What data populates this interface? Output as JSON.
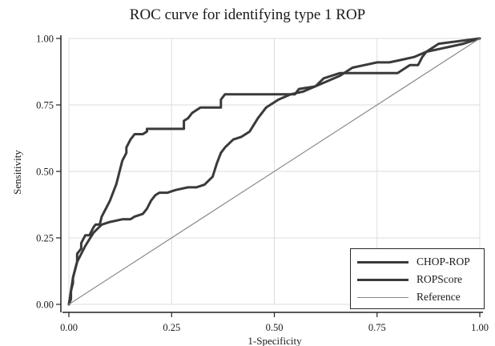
{
  "chart_data": {
    "type": "line",
    "title": "ROC curve for identifying  type 1  ROP",
    "xlabel": "1-Specificity",
    "ylabel": "Sensitivity",
    "xlim": [
      0,
      1
    ],
    "ylim": [
      0,
      1
    ],
    "xticks": [
      "0.00",
      "0.25",
      "0.50",
      "0.75",
      "1.00"
    ],
    "yticks": [
      "0.00",
      "0.25",
      "0.50",
      "0.75",
      "1.00"
    ],
    "grid": true,
    "legend_position": "bottom-right",
    "series": [
      {
        "name": "CHOP-ROP",
        "color": "#3a3a3a",
        "x": [
          0,
          0.005,
          0.005,
          0.01,
          0.01,
          0.015,
          0.02,
          0.02,
          0.03,
          0.03,
          0.04,
          0.045,
          0.05,
          0.06,
          0.065,
          0.075,
          0.08,
          0.09,
          0.1,
          0.11,
          0.115,
          0.12,
          0.125,
          0.13,
          0.14,
          0.14,
          0.15,
          0.16,
          0.16,
          0.17,
          0.18,
          0.19,
          0.19,
          0.22,
          0.23,
          0.28,
          0.28,
          0.29,
          0.3,
          0.31,
          0.32,
          0.37,
          0.37,
          0.38,
          0.4,
          0.45,
          0.52,
          0.55,
          0.56,
          0.6,
          0.62,
          0.66,
          0.7,
          0.72,
          0.8,
          0.83,
          0.85,
          0.86,
          0.87,
          0.9,
          1.0
        ],
        "y": [
          0,
          0.02,
          0.05,
          0.08,
          0.1,
          0.13,
          0.16,
          0.19,
          0.21,
          0.23,
          0.26,
          0.26,
          0.26,
          0.29,
          0.3,
          0.3,
          0.33,
          0.36,
          0.39,
          0.43,
          0.45,
          0.48,
          0.51,
          0.54,
          0.57,
          0.59,
          0.62,
          0.64,
          0.64,
          0.64,
          0.64,
          0.65,
          0.66,
          0.66,
          0.66,
          0.66,
          0.69,
          0.7,
          0.72,
          0.73,
          0.74,
          0.74,
          0.77,
          0.79,
          0.79,
          0.79,
          0.79,
          0.79,
          0.81,
          0.82,
          0.85,
          0.87,
          0.87,
          0.87,
          0.87,
          0.9,
          0.9,
          0.93,
          0.95,
          0.98,
          1.0
        ]
      },
      {
        "name": "ROPScore",
        "color": "#3a3a3a",
        "x": [
          0,
          0.01,
          0.02,
          0.04,
          0.06,
          0.08,
          0.1,
          0.13,
          0.15,
          0.16,
          0.18,
          0.19,
          0.2,
          0.21,
          0.22,
          0.24,
          0.26,
          0.29,
          0.31,
          0.33,
          0.35,
          0.36,
          0.37,
          0.38,
          0.4,
          0.42,
          0.44,
          0.46,
          0.48,
          0.51,
          0.54,
          0.57,
          0.6,
          0.63,
          0.66,
          0.69,
          0.72,
          0.75,
          0.78,
          0.81,
          0.84,
          0.87,
          0.9,
          0.93,
          0.96,
          1.0
        ],
        "y": [
          0,
          0.1,
          0.16,
          0.22,
          0.27,
          0.3,
          0.31,
          0.32,
          0.32,
          0.33,
          0.34,
          0.36,
          0.39,
          0.41,
          0.42,
          0.42,
          0.43,
          0.44,
          0.44,
          0.45,
          0.48,
          0.53,
          0.57,
          0.59,
          0.62,
          0.63,
          0.65,
          0.7,
          0.74,
          0.77,
          0.79,
          0.8,
          0.82,
          0.84,
          0.86,
          0.89,
          0.9,
          0.91,
          0.91,
          0.92,
          0.93,
          0.95,
          0.96,
          0.97,
          0.98,
          1.0
        ]
      },
      {
        "name": "Reference",
        "color": "#8a8a8a",
        "x": [
          0,
          1
        ],
        "y": [
          0,
          1
        ]
      }
    ]
  }
}
